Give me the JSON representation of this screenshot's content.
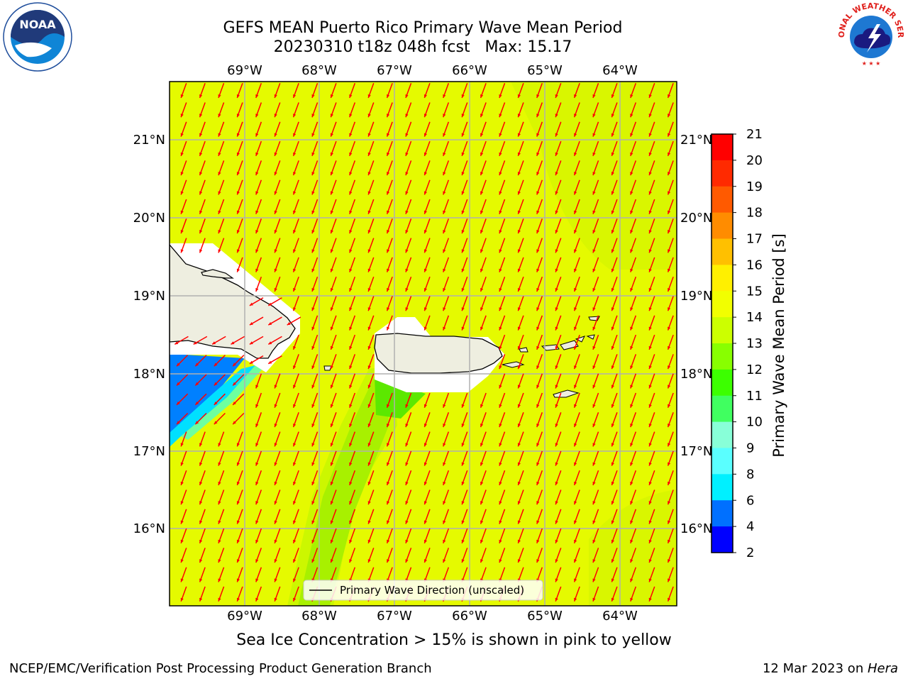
{
  "header": {
    "title": "GEFS MEAN Puerto Rico Primary Wave Mean Period",
    "subtitle": "20230310 t18z 048h fcst   Max: 15.17",
    "noaa_logo_text": "NOAA",
    "nws_logo_text": "NATIONAL WEATHER SERVICE"
  },
  "map": {
    "lon_labels": [
      "69°W",
      "68°W",
      "67°W",
      "66°W",
      "65°W",
      "64°W"
    ],
    "lat_labels": [
      "21°N",
      "20°N",
      "19°N",
      "18°N",
      "17°N",
      "16°N"
    ],
    "legend_label": "Primary Wave Direction (unscaled)",
    "arrow_color": "#ff0000",
    "field_color": "#e5fa00",
    "land_color": "#eeeee0"
  },
  "colorbar": {
    "label": "Primary Wave Mean Period [s]",
    "ticks": [
      "21",
      "20",
      "19",
      "18",
      "17",
      "16",
      "15",
      "14",
      "13",
      "12",
      "11",
      "10",
      "9",
      "8",
      "6",
      "4",
      "2"
    ],
    "colors": [
      "#ff0000",
      "#ff2a00",
      "#ff5a00",
      "#ff8c00",
      "#ffc000",
      "#fff000",
      "#f2ff00",
      "#ccff00",
      "#88ff00",
      "#3cff00",
      "#40ff60",
      "#88ffd8",
      "#5affff",
      "#00f0ff",
      "#0070ff",
      "#0000ff"
    ]
  },
  "note": "Sea Ice Concentration > 15% is shown in pink to yellow",
  "footer": {
    "left": "NCEP/EMC/Verification Post Processing Product Generation Branch",
    "date": "12 Mar 2023 on ",
    "machine": "Hera"
  }
}
